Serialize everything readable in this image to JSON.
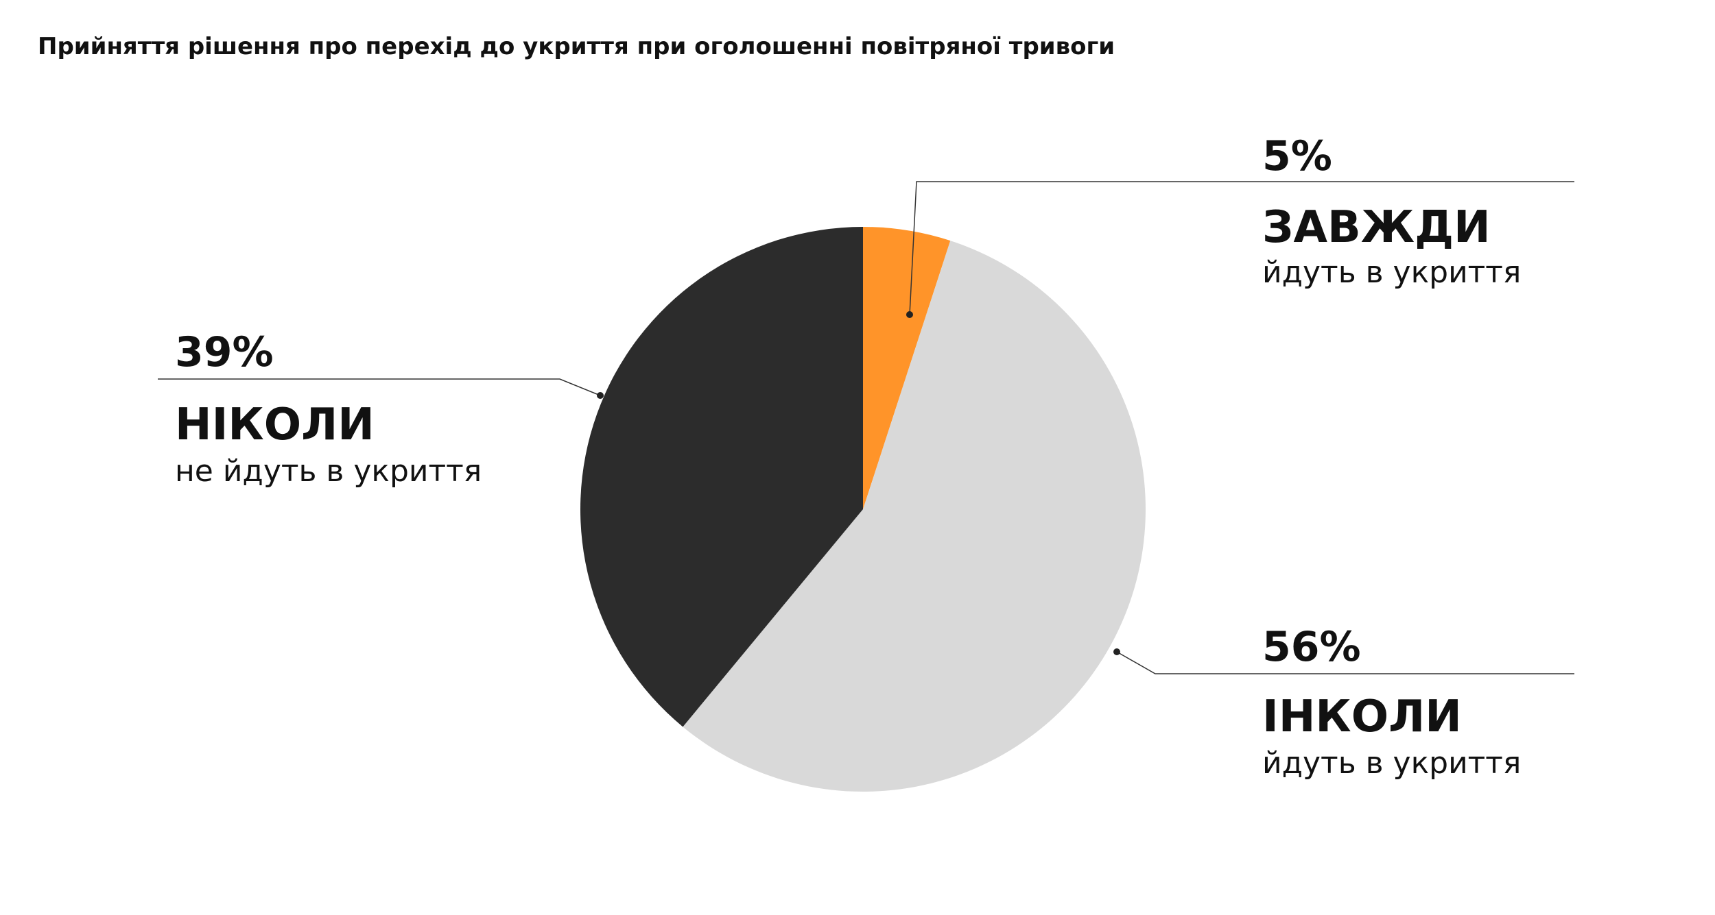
{
  "chart_data": {
    "type": "pie",
    "title": "Прийняття рішення про перехід до укриття при оголошенні повітряної тривоги",
    "slices": [
      {
        "value": 5,
        "label": "5%",
        "category": "ЗАВЖДИ",
        "description": "йдуть в укриття",
        "color": "#FF9429"
      },
      {
        "value": 56,
        "label": "56%",
        "category": "ІНКОЛИ",
        "description": "йдуть в укриття",
        "color": "#D9D9D9"
      },
      {
        "value": 39,
        "label": "39%",
        "category": "НІКОЛИ",
        "description": "не йдуть в укриття",
        "color": "#2C2C2C"
      }
    ],
    "legend": "none"
  }
}
